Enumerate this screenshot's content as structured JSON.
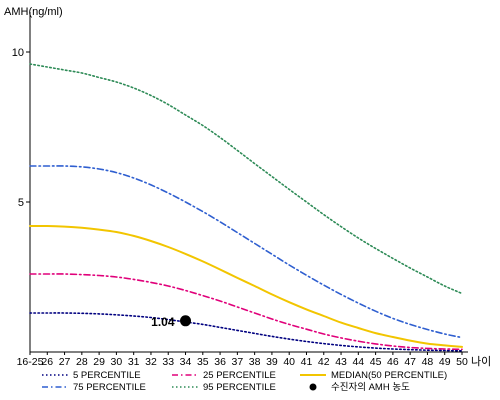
{
  "chart_data": {
    "type": "line",
    "ylabel": "AMH(ng/ml)",
    "xlabel": "나이",
    "ylim": [
      0,
      11
    ],
    "yticks": [
      5,
      10
    ],
    "ytick_labels": [
      "5",
      "10"
    ],
    "categories": [
      "16-25",
      "26",
      "27",
      "28",
      "29",
      "30",
      "31",
      "32",
      "33",
      "34",
      "35",
      "36",
      "37",
      "38",
      "39",
      "40",
      "41",
      "42",
      "43",
      "44",
      "45",
      "46",
      "47",
      "48",
      "49",
      "50"
    ],
    "series": [
      {
        "name": "5 PERCENTILE",
        "color": "#000080",
        "dash": "dot",
        "values": [
          1.3,
          1.3,
          1.3,
          1.29,
          1.27,
          1.24,
          1.2,
          1.15,
          1.08,
          1.0,
          0.92,
          0.82,
          0.72,
          0.62,
          0.52,
          0.43,
          0.35,
          0.28,
          0.22,
          0.17,
          0.13,
          0.1,
          0.08,
          0.06,
          0.05,
          0.04
        ]
      },
      {
        "name": "25 PERCENTILE",
        "color": "#e0007a",
        "dash": "dashdot",
        "values": [
          2.6,
          2.6,
          2.6,
          2.58,
          2.55,
          2.5,
          2.42,
          2.32,
          2.2,
          2.05,
          1.88,
          1.7,
          1.5,
          1.3,
          1.1,
          0.92,
          0.76,
          0.6,
          0.47,
          0.36,
          0.27,
          0.2,
          0.15,
          0.12,
          0.1,
          0.09
        ]
      },
      {
        "name": "MEDIAN(50 PERCENTILE)",
        "color": "#f2c500",
        "dash": "solid",
        "values": [
          4.2,
          4.2,
          4.18,
          4.14,
          4.08,
          4.0,
          3.87,
          3.7,
          3.5,
          3.27,
          3.02,
          2.75,
          2.47,
          2.2,
          1.92,
          1.66,
          1.42,
          1.2,
          0.98,
          0.8,
          0.63,
          0.5,
          0.38,
          0.28,
          0.22,
          0.17
        ]
      },
      {
        "name": "75 PERCENTILE",
        "color": "#2f5fd0",
        "dash": "dashdot",
        "values": [
          6.2,
          6.2,
          6.2,
          6.17,
          6.1,
          5.98,
          5.8,
          5.57,
          5.3,
          5.0,
          4.68,
          4.34,
          3.98,
          3.62,
          3.26,
          2.9,
          2.56,
          2.23,
          1.92,
          1.63,
          1.36,
          1.12,
          0.92,
          0.75,
          0.6,
          0.48
        ]
      },
      {
        "name": "95 PERCENTILE",
        "color": "#2e8b57",
        "dash": "dot",
        "values": [
          9.6,
          9.5,
          9.4,
          9.3,
          9.15,
          9.0,
          8.8,
          8.55,
          8.25,
          7.9,
          7.55,
          7.15,
          6.72,
          6.28,
          5.85,
          5.42,
          5.0,
          4.58,
          4.18,
          3.8,
          3.45,
          3.12,
          2.8,
          2.5,
          2.2,
          1.95
        ]
      }
    ],
    "points": [
      {
        "name": "수진자의 AMH 농도",
        "x": "34",
        "y": 1.04,
        "label": "1.04",
        "color": "#000000"
      }
    ],
    "legend": [
      {
        "label": "5 PERCENTILE",
        "series": 0
      },
      {
        "label": "25 PERCENTILE",
        "series": 1
      },
      {
        "label": "MEDIAN(50 PERCENTILE)",
        "series": 2
      },
      {
        "label": "75 PERCENTILE",
        "series": 3
      },
      {
        "label": "95 PERCENTILE",
        "series": 4
      },
      {
        "label": "수진자의 AMH 농도",
        "marker": "dot"
      }
    ],
    "legend_position": "bottom"
  }
}
